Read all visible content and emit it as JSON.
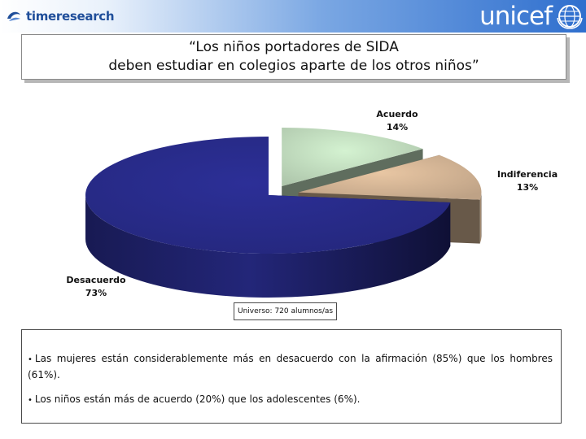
{
  "header": {
    "left_brand": "timeresearch",
    "right_brand": "unicef"
  },
  "title": {
    "line1": "“Los niños portadores de SIDA",
    "line2": "deben estudiar en colegios aparte de los otros niños”"
  },
  "chart_data": {
    "type": "pie",
    "style": "3d-exploded",
    "slices": [
      {
        "label": "Acuerdo",
        "value": 14,
        "value_label": "14%",
        "color": "#d4f2d1"
      },
      {
        "label": "Indiferencia",
        "value": 13,
        "value_label": "13%",
        "color": "#e8c6a3"
      },
      {
        "label": "Desacuerdo",
        "value": 73,
        "value_label": "73%",
        "color": "#2c2f97"
      }
    ]
  },
  "universe": "Universo: 720 alumnos/as",
  "notes": [
    "Las mujeres están considerablemente más en desacuerdo con la afirmación (85%) que los hombres (61%).",
    "Los niños están más de acuerdo (20%) que los adolescentes (6%)."
  ]
}
